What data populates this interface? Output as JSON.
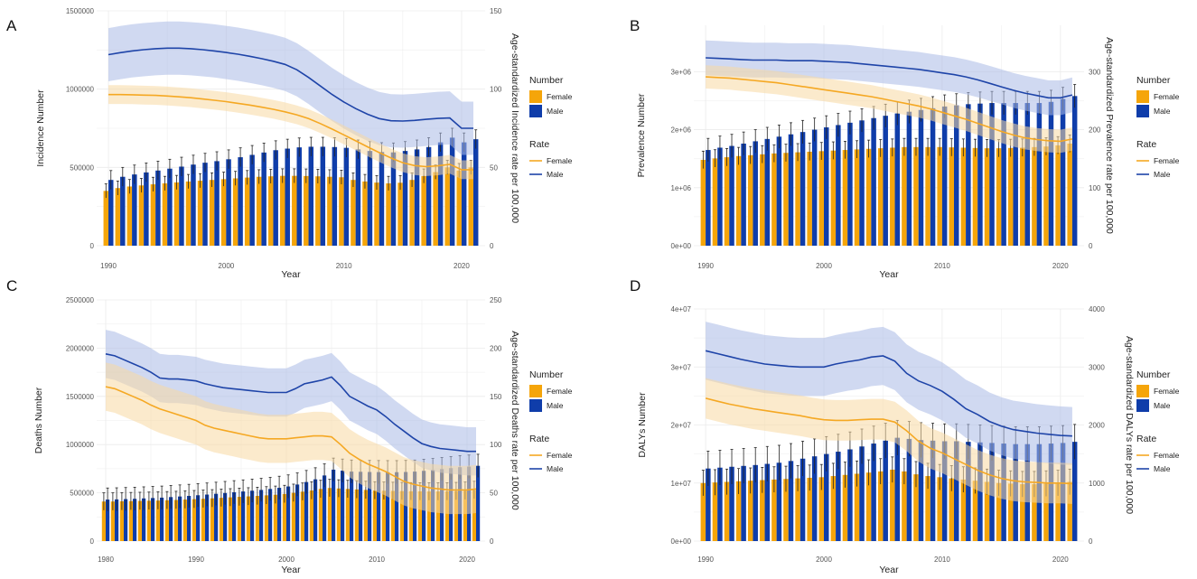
{
  "colors": {
    "female_bar": "#F5A50A",
    "male_bar": "#0F3DAA",
    "female_line": "#F5A823",
    "male_line": "#1E44A8",
    "female_band": "#F7D9A3",
    "male_band": "#A9B9E6"
  },
  "chart_data": [
    {
      "panel": "A",
      "type": "bar+line",
      "xlabel": "Year",
      "ylabel_left": "Incidence Number",
      "ylabel_right": "Age-standardized Incidence rate per 100,000",
      "years": [
        1990,
        1991,
        1992,
        1993,
        1994,
        1995,
        1996,
        1997,
        1998,
        1999,
        2000,
        2001,
        2002,
        2003,
        2004,
        2005,
        2006,
        2007,
        2008,
        2009,
        2010,
        2011,
        2012,
        2013,
        2014,
        2015,
        2016,
        2017,
        2018,
        2019,
        2020,
        2021
      ],
      "xlim": [
        1989,
        2022
      ],
      "x_ticks": [
        1990,
        2000,
        2010,
        2020
      ],
      "ylim_left": [
        0,
        1500000
      ],
      "left_ticks": [
        0,
        500000,
        1000000,
        1500000
      ],
      "left_tick_labels": [
        "0",
        "500000",
        "1000000",
        "1500000"
      ],
      "ylim_right": [
        0,
        150
      ],
      "right_ticks": [
        0,
        50,
        100,
        150
      ],
      "right_tick_labels": [
        "0",
        "50",
        "100",
        "150"
      ],
      "bars_female": [
        350000,
        368000,
        378000,
        385000,
        392000,
        398000,
        404000,
        410000,
        415000,
        420000,
        425000,
        430000,
        435000,
        440000,
        443000,
        446000,
        446000,
        445000,
        443000,
        440000,
        437000,
        420000,
        410000,
        403000,
        398000,
        402000,
        420000,
        445000,
        470000,
        500000,
        480000,
        500000
      ],
      "bars_male": [
        420000,
        440000,
        455000,
        468000,
        480000,
        492000,
        505000,
        518000,
        530000,
        540000,
        552000,
        565000,
        580000,
        595000,
        610000,
        620000,
        628000,
        632000,
        632000,
        630000,
        625000,
        615000,
        605000,
        598000,
        596000,
        605000,
        615000,
        630000,
        660000,
        690000,
        660000,
        680000
      ],
      "err_female": 45000,
      "err_male": 60000,
      "line_female": [
        96.5,
        96.5,
        96.4,
        96.2,
        96.0,
        95.6,
        95.1,
        94.5,
        93.7,
        92.9,
        92.0,
        90.9,
        89.8,
        88.5,
        87.1,
        85.5,
        83.6,
        81.2,
        78.0,
        74.5,
        70.8,
        67.0,
        63.2,
        59.5,
        56.0,
        53.0,
        51.2,
        50.5,
        51.0,
        52.0,
        48.5,
        48.5
      ],
      "female_ci": 6,
      "line_male": [
        122.0,
        123.3,
        124.4,
        125.2,
        125.8,
        126.2,
        126.2,
        125.8,
        125.2,
        124.4,
        123.4,
        122.3,
        121.0,
        119.5,
        117.8,
        115.8,
        112.4,
        107.5,
        102.0,
        96.6,
        91.8,
        87.6,
        84.0,
        81.2,
        79.8,
        79.6,
        80.0,
        80.7,
        81.3,
        81.6,
        75.0,
        75.0
      ],
      "male_ci": 17,
      "legend": {
        "number_title": "Number",
        "rate_title": "Rate",
        "female": "Female",
        "male": "Male"
      }
    },
    {
      "panel": "B",
      "type": "bar+line",
      "xlabel": "Year",
      "ylabel_left": "Prevalence Number",
      "ylabel_right": "Age-standardized Prevalence rate per 100,000",
      "years": [
        1990,
        1991,
        1992,
        1993,
        1994,
        1995,
        1996,
        1997,
        1998,
        1999,
        2000,
        2001,
        2002,
        2003,
        2004,
        2005,
        2006,
        2007,
        2008,
        2009,
        2010,
        2011,
        2012,
        2013,
        2014,
        2015,
        2016,
        2017,
        2018,
        2019,
        2020,
        2021
      ],
      "xlim": [
        1989,
        2022
      ],
      "x_ticks": [
        1990,
        2000,
        2010,
        2020
      ],
      "ylim_left": [
        0,
        3800000
      ],
      "left_ticks": [
        0,
        1000000,
        2000000,
        3000000
      ],
      "left_tick_labels": [
        "0e+00",
        "1e+06",
        "2e+06",
        "3e+06"
      ],
      "ylim_right": [
        0,
        380
      ],
      "right_ticks": [
        0,
        100,
        200,
        300
      ],
      "right_tick_labels": [
        "0",
        "100",
        "200",
        "300"
      ],
      "bars_female": [
        1480000,
        1505000,
        1525000,
        1545000,
        1560000,
        1575000,
        1590000,
        1600000,
        1610000,
        1620000,
        1630000,
        1640000,
        1650000,
        1660000,
        1670000,
        1680000,
        1690000,
        1700000,
        1700000,
        1700000,
        1700000,
        1695000,
        1690000,
        1685000,
        1680000,
        1680000,
        1685000,
        1690000,
        1700000,
        1710000,
        1730000,
        1760000
      ],
      "bars_male": [
        1650000,
        1690000,
        1720000,
        1760000,
        1800000,
        1840000,
        1880000,
        1920000,
        1960000,
        2000000,
        2040000,
        2080000,
        2120000,
        2160000,
        2200000,
        2240000,
        2280000,
        2310000,
        2340000,
        2370000,
        2400000,
        2420000,
        2440000,
        2450000,
        2460000,
        2460000,
        2460000,
        2460000,
        2460000,
        2480000,
        2530000,
        2580000
      ],
      "err_female": 150000,
      "err_male": 200000,
      "line_female": [
        291,
        290,
        289,
        287,
        285,
        283,
        281,
        278,
        275,
        272,
        269,
        266,
        263,
        260,
        257,
        253,
        249,
        245,
        241,
        236,
        230,
        224,
        218,
        211,
        204,
        197,
        191,
        186,
        183,
        181,
        180,
        184
      ],
      "female_ci": 20,
      "line_male": [
        324,
        323,
        322,
        321,
        320,
        320,
        320,
        319,
        319,
        319,
        318,
        317,
        316,
        314,
        312,
        310,
        308,
        306,
        304,
        301,
        298,
        295,
        291,
        286,
        280,
        274,
        268,
        263,
        259,
        255,
        255,
        260
      ],
      "male_ci": 30,
      "legend": {
        "number_title": "Number",
        "rate_title": "Rate",
        "female": "Female",
        "male": "Male"
      }
    },
    {
      "panel": "C",
      "type": "bar+line",
      "xlabel": "Year",
      "ylabel_left": "Deaths Number",
      "ylabel_right": "Age-standardized Deaths rate per 100,000",
      "years": [
        1980,
        1981,
        1982,
        1983,
        1984,
        1985,
        1986,
        1987,
        1988,
        1989,
        1990,
        1991,
        1992,
        1993,
        1994,
        1995,
        1996,
        1997,
        1998,
        1999,
        2000,
        2001,
        2002,
        2003,
        2004,
        2005,
        2006,
        2007,
        2008,
        2009,
        2010,
        2011,
        2012,
        2013,
        2014,
        2015,
        2016,
        2017,
        2018,
        2019,
        2020,
        2021
      ],
      "xlim": [
        1979,
        2022
      ],
      "x_ticks": [
        1980,
        1990,
        2000,
        2010,
        2020
      ],
      "ylim_left": [
        0,
        2500000
      ],
      "left_ticks": [
        0,
        500000,
        1000000,
        1500000,
        2000000,
        2500000
      ],
      "left_tick_labels": [
        "0",
        "500000",
        "1000000",
        "1500000",
        "2000000",
        "2500000"
      ],
      "ylim_right": [
        0,
        250
      ],
      "right_ticks": [
        0,
        50,
        100,
        150,
        200,
        250
      ],
      "right_tick_labels": [
        "0",
        "50",
        "100",
        "150",
        "200",
        "250"
      ],
      "bars_female": [
        410000,
        410000,
        412000,
        414000,
        416000,
        418000,
        420000,
        423000,
        426000,
        430000,
        434000,
        438000,
        443000,
        448000,
        453000,
        458000,
        463000,
        468000,
        474000,
        480000,
        488000,
        500000,
        512000,
        524000,
        540000,
        550000,
        545000,
        540000,
        535000,
        530000,
        525000,
        522000,
        520000,
        518000,
        516000,
        515000,
        514000,
        514000,
        515000,
        518000,
        522000,
        530000
      ],
      "bars_male": [
        430000,
        432000,
        435000,
        438000,
        442000,
        446000,
        450000,
        456000,
        462000,
        468000,
        475000,
        482000,
        490000,
        498000,
        506000,
        514000,
        522000,
        530000,
        540000,
        552000,
        566000,
        586000,
        612000,
        640000,
        680000,
        740000,
        730000,
        720000,
        718000,
        716000,
        715000,
        714000,
        714000,
        716000,
        720000,
        728000,
        736000,
        746000,
        756000,
        766000,
        772000,
        780000
      ],
      "err_female": 90000,
      "err_male": 120000,
      "line_female": [
        160,
        158,
        154,
        150,
        146,
        141,
        137,
        134,
        131,
        128,
        125,
        120,
        117,
        115,
        113,
        111,
        109,
        107,
        106,
        106,
        106,
        107,
        108,
        109,
        109,
        108,
        100,
        91,
        85,
        80,
        76,
        72,
        67,
        62,
        59,
        57,
        55,
        54,
        53,
        53,
        53,
        54
      ],
      "female_ci": 25,
      "line_male": [
        194,
        192,
        188,
        184,
        180,
        175,
        169,
        168,
        168,
        167,
        166,
        163,
        161,
        159,
        158,
        157,
        156,
        155,
        154,
        154,
        154,
        158,
        163,
        165,
        167,
        170,
        161,
        150,
        145,
        140,
        136,
        129,
        121,
        114,
        107,
        101,
        98,
        96,
        95,
        94,
        93,
        93
      ],
      "male_ci": 25,
      "legend": {
        "number_title": "Number",
        "rate_title": "Rate",
        "female": "Female",
        "male": "Male"
      }
    },
    {
      "panel": "D",
      "type": "bar+line",
      "xlabel": "Year",
      "ylabel_left": "DALYs Number",
      "ylabel_right": "Age-standardized DALYs rate per 100,000",
      "years": [
        1990,
        1991,
        1992,
        1993,
        1994,
        1995,
        1996,
        1997,
        1998,
        1999,
        2000,
        2001,
        2002,
        2003,
        2004,
        2005,
        2006,
        2007,
        2008,
        2009,
        2010,
        2011,
        2012,
        2013,
        2014,
        2015,
        2016,
        2017,
        2018,
        2019,
        2020,
        2021
      ],
      "xlim": [
        1989,
        2022
      ],
      "x_ticks": [
        1990,
        2000,
        2010,
        2020
      ],
      "ylim_left": [
        0,
        40000000
      ],
      "left_ticks": [
        0,
        10000000,
        20000000,
        30000000,
        40000000
      ],
      "left_tick_labels": [
        "0e+00",
        "1e+07",
        "2e+07",
        "3e+07",
        "4e+07"
      ],
      "ylim_right": [
        0,
        4000
      ],
      "right_ticks": [
        0,
        1000,
        2000,
        3000,
        4000
      ],
      "right_tick_labels": [
        "0",
        "1000",
        "2000",
        "3000",
        "4000"
      ],
      "bars_female": [
        10000000,
        10100000,
        10200000,
        10300000,
        10400000,
        10500000,
        10600000,
        10700000,
        10800000,
        10900000,
        11000000,
        11200000,
        11400000,
        11600000,
        11800000,
        12000000,
        12300000,
        12000000,
        11500000,
        11200000,
        11000000,
        10800000,
        10600000,
        10400000,
        10200000,
        10000000,
        9900000,
        9800000,
        9800000,
        9900000,
        10000000,
        10200000
      ],
      "bars_male": [
        12500000,
        12650000,
        12800000,
        12950000,
        13100000,
        13300000,
        13500000,
        13800000,
        14200000,
        14600000,
        15000000,
        15400000,
        15800000,
        16300000,
        16800000,
        17300000,
        17800000,
        17600000,
        17400000,
        17300000,
        17200000,
        17200000,
        17100000,
        17000000,
        16900000,
        16800000,
        16700000,
        16700000,
        16700000,
        16800000,
        16900000,
        17100000
      ],
      "err_female": 2200000,
      "err_male": 3000000,
      "line_female": [
        2460,
        2410,
        2360,
        2320,
        2280,
        2250,
        2220,
        2190,
        2160,
        2120,
        2090,
        2080,
        2080,
        2090,
        2100,
        2100,
        2050,
        1900,
        1720,
        1600,
        1520,
        1420,
        1320,
        1220,
        1140,
        1080,
        1040,
        1020,
        1010,
        1000,
        1000,
        990
      ],
      "female_ci": 350,
      "line_male": [
        3280,
        3230,
        3180,
        3130,
        3090,
        3050,
        3030,
        3010,
        3000,
        3000,
        3000,
        3050,
        3090,
        3120,
        3170,
        3190,
        3100,
        2890,
        2760,
        2680,
        2580,
        2440,
        2280,
        2180,
        2060,
        1980,
        1920,
        1890,
        1860,
        1840,
        1820,
        1810
      ],
      "male_ci": 500,
      "legend": {
        "number_title": "Number",
        "rate_title": "Rate",
        "female": "Female",
        "male": "Male"
      }
    }
  ]
}
